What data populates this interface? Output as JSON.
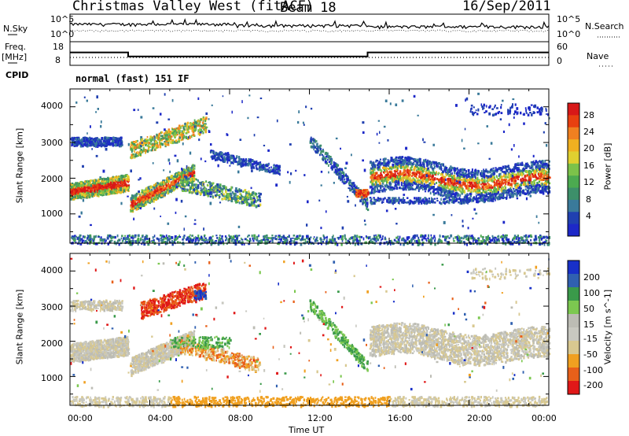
{
  "header": {
    "station": "Christmas Valley West (fitACF)",
    "beam": "Beam 18",
    "date": "16/Sep/2011"
  },
  "noise_panel": {
    "left_label": "N.Sky",
    "left_ticks": [
      "10^5",
      "10^0"
    ],
    "right_label": "N.Search",
    "right_ticks": [
      "10^5",
      "10^0"
    ]
  },
  "freq_panel": {
    "left_label_1": "Freq.",
    "left_label_2": "[MHz]",
    "left_ticks": [
      "18",
      "8"
    ],
    "right_label": "Nave",
    "right_ticks": [
      "60",
      "0"
    ]
  },
  "cpid": {
    "label": "CPID",
    "mode": "normal (fast) 151 IF"
  },
  "colors": {
    "power": [
      "#1d28c8",
      "#2040b0",
      "#3a7a9a",
      "#3d8f6a",
      "#4caa50",
      "#7cc24a",
      "#e0d030",
      "#f0b020",
      "#f08020",
      "#e84010",
      "#d81818"
    ],
    "velocity": [
      "#e01818",
      "#e8601a",
      "#f0a020",
      "#d8c890",
      "#c8c8c0",
      "#bcbcb4",
      "#7cc850",
      "#3a9a4a",
      "#3060b0",
      "#1830c8"
    ]
  },
  "chart_data": [
    {
      "type": "line",
      "title": "",
      "series": [
        {
          "name": "N.Sky",
          "values": []
        },
        {
          "name": "N.Search",
          "values": []
        }
      ],
      "ylabel": "N.Sky",
      "ylim": [
        1,
        100000
      ],
      "log_scale": true
    },
    {
      "type": "line",
      "ylabel": "Freq. [MHz]",
      "ylim": [
        8,
        18
      ],
      "series": [
        {
          "name": "Freq.",
          "x": [
            "00:00",
            "02:55",
            "02:55",
            "14:55",
            "14:55",
            "24:00"
          ],
          "values": [
            13.6,
            13.6,
            11.4,
            11.4,
            13.6,
            13.6
          ]
        },
        {
          "name": "Nave",
          "values": []
        }
      ]
    },
    {
      "type": "heatmap",
      "ylabel": "Slant Range [km]",
      "ylim": [
        180,
        4500
      ],
      "yticks": [
        "1000",
        "2000",
        "3000",
        "4000"
      ],
      "colorbar": {
        "label": "Power [dB]",
        "ticks": [
          "28",
          "24",
          "20",
          "16",
          "12",
          "8",
          "4"
        ],
        "range": [
          0,
          30
        ]
      }
    },
    {
      "type": "heatmap",
      "xlabel": "Time UT",
      "ylabel": "Slant Range [km]",
      "ylim": [
        180,
        4500
      ],
      "xticks": [
        "00:00",
        "04:00",
        "08:00",
        "12:00",
        "16:00",
        "20:00",
        "00:00"
      ],
      "yticks": [
        "1000",
        "2000",
        "3000",
        "4000"
      ],
      "colorbar": {
        "label": "Velocity [m s^-1]",
        "ticks": [
          "200",
          "100",
          "50",
          "15",
          "-15",
          "-50",
          "-100",
          "-200"
        ],
        "range": [
          -250,
          250
        ]
      }
    }
  ]
}
